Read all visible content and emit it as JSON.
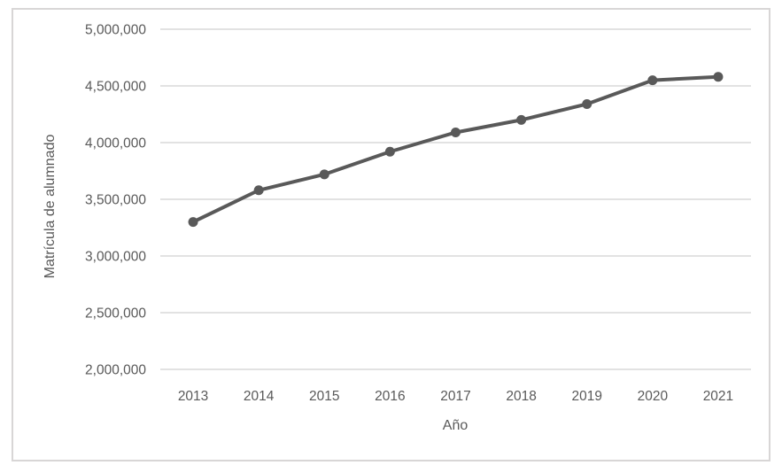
{
  "chart_data": {
    "type": "line",
    "title": "",
    "xlabel": "Año",
    "ylabel": "Matrícula de alumnado",
    "categories": [
      "2013",
      "2014",
      "2015",
      "2016",
      "2017",
      "2018",
      "2019",
      "2020",
      "2021"
    ],
    "series": [
      {
        "name": "Matrícula de alumnado",
        "values": [
          3300000,
          3580000,
          3720000,
          3920000,
          4090000,
          4200000,
          4340000,
          4550000,
          4580000
        ]
      }
    ],
    "ylim": [
      2000000,
      5000000
    ],
    "yticks": [
      {
        "value": 2000000,
        "label": "2,000,000"
      },
      {
        "value": 2500000,
        "label": "2,500,000"
      },
      {
        "value": 3000000,
        "label": "3,000,000"
      },
      {
        "value": 3500000,
        "label": "3,500,000"
      },
      {
        "value": 4000000,
        "label": "4,000,000"
      },
      {
        "value": 4500000,
        "label": "4,500,000"
      },
      {
        "value": 5000000,
        "label": "5,000,000"
      }
    ],
    "grid": "horizontal",
    "legend": "none",
    "colors": {
      "line": "#595959",
      "marker": "#595959",
      "gridline": "#d9d9d9",
      "tick_text": "#595959",
      "frame_border": "#d8d6d6",
      "background": "#ffffff"
    }
  }
}
